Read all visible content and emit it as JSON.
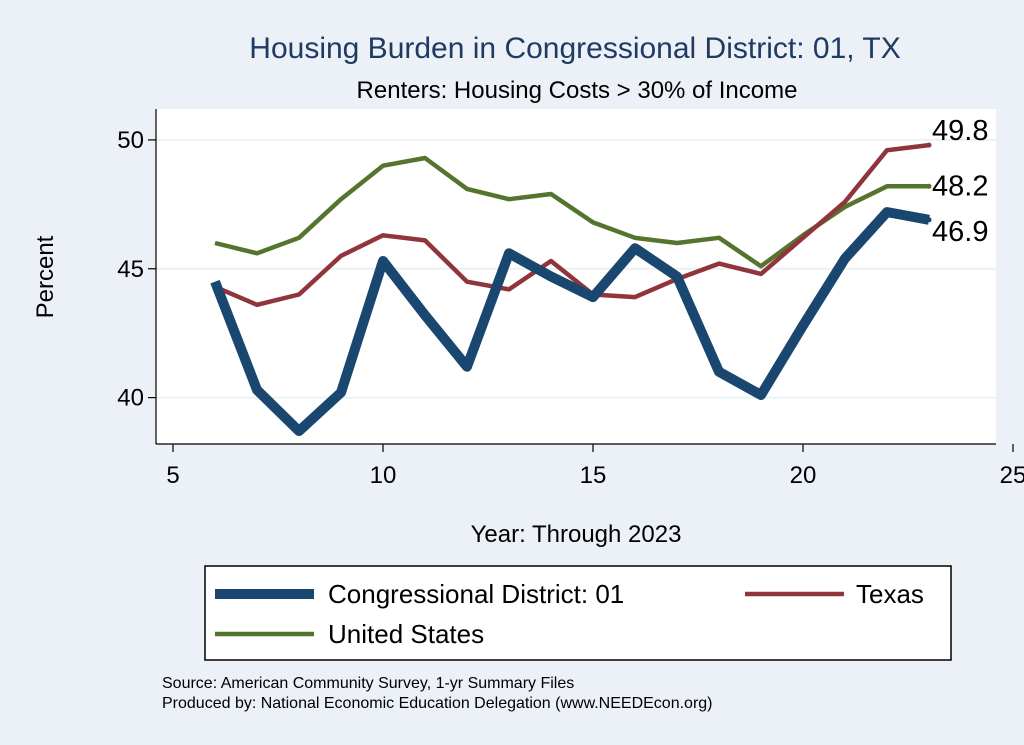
{
  "chart_data": {
    "type": "line",
    "title": "Housing Burden in Congressional District:  01, TX",
    "subtitle": "Renters: Housing Costs > 30% of Income",
    "xlabel": "Year: Through 2023",
    "ylabel": "Percent",
    "xlim": [
      5,
      25
    ],
    "ylim": [
      38.2,
      51.2
    ],
    "xticks": [
      5,
      10,
      15,
      20,
      25
    ],
    "yticks": [
      40,
      45,
      50
    ],
    "grid": true,
    "legend_position": "bottom",
    "x": [
      6,
      7,
      8,
      9,
      10,
      11,
      12,
      13,
      14,
      15,
      16,
      17,
      18,
      19,
      20,
      21,
      22,
      23
    ],
    "series": [
      {
        "name": "Congressional District:  01",
        "color": "#1a476f",
        "values": [
          44.5,
          40.3,
          38.7,
          40.2,
          45.3,
          43.2,
          41.2,
          45.6,
          44.7,
          43.9,
          45.8,
          44.7,
          41.0,
          40.1,
          42.8,
          45.4,
          47.2,
          46.9
        ],
        "end_label": "46.9"
      },
      {
        "name": "Texas",
        "color": "#90353b",
        "values": [
          44.3,
          43.6,
          44.0,
          45.5,
          46.3,
          46.1,
          44.5,
          44.2,
          45.3,
          44.0,
          43.9,
          44.6,
          45.2,
          44.8,
          46.2,
          47.6,
          49.6,
          49.8
        ],
        "end_label": "49.8"
      },
      {
        "name": "United States",
        "color": "#55752f",
        "values": [
          46.0,
          45.6,
          46.2,
          47.7,
          49.0,
          49.3,
          48.1,
          47.7,
          47.9,
          46.8,
          46.2,
          46.0,
          46.2,
          45.1,
          46.3,
          47.4,
          48.2,
          48.2
        ],
        "end_label": "48.2"
      }
    ]
  },
  "footer": {
    "source": "Source: American Community Survey, 1-yr Summary Files",
    "produced_by": "Produced by: National Economic Education Delegation (www.NEEDEcon.org)"
  }
}
